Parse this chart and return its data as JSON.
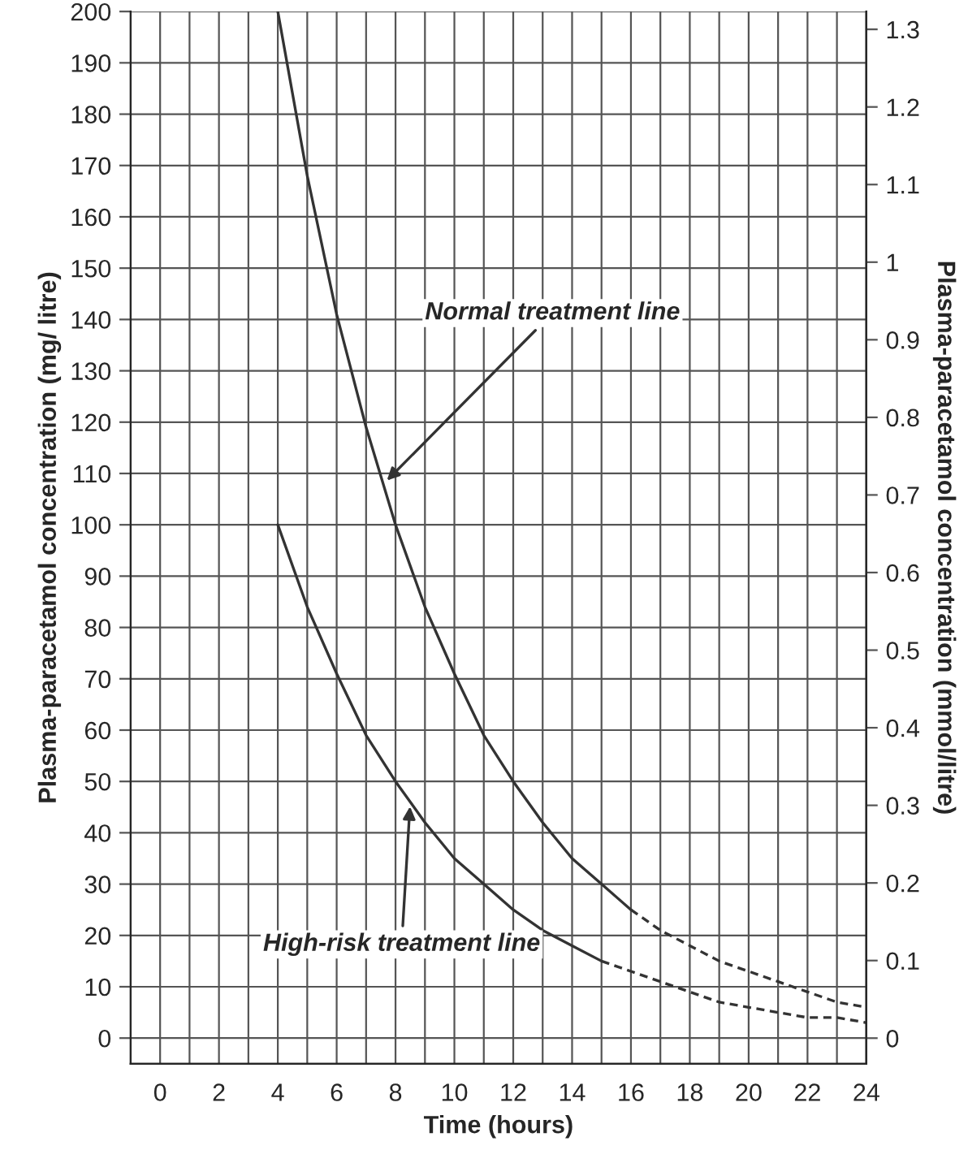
{
  "chart_data": {
    "type": "line",
    "xlabel": "Time (hours)",
    "ylabel": "Plasma-paracetamol concentration (mg/ litre)",
    "y2label": "Plasma-paracetamol concentration (mmol/litre)",
    "series": [
      {
        "color": "#333333",
        "line_style": "solid",
        "x": [
          4,
          5,
          6,
          7,
          8,
          9,
          10,
          11,
          12,
          13,
          14,
          15,
          16
        ],
        "values": [
          200,
          168,
          141,
          119,
          100,
          84,
          71,
          59,
          50,
          42,
          35,
          30,
          25
        ]
      },
      {
        "color": "#333333",
        "line_style": "dashed",
        "x": [
          16,
          17,
          18,
          19,
          20,
          21,
          22,
          23,
          24
        ],
        "values": [
          25,
          21,
          18,
          15,
          13,
          11,
          9,
          7,
          6
        ]
      },
      {
        "color": "#333333",
        "line_style": "solid",
        "x": [
          4,
          5,
          6,
          7,
          8,
          9,
          10,
          11,
          12,
          13,
          14,
          15
        ],
        "values": [
          100,
          84,
          71,
          59,
          50,
          42,
          35,
          30,
          25,
          21,
          18,
          15
        ]
      },
      {
        "color": "#333333",
        "line_style": "dashed",
        "x": [
          15,
          16,
          17,
          18,
          19,
          20,
          21,
          22,
          23,
          24
        ],
        "values": [
          15,
          13,
          11,
          9,
          7,
          6,
          5,
          4,
          4,
          3
        ]
      }
    ],
    "annotations": [
      {
        "text": "Normal treatment line",
        "x": 7.6,
        "y": 108
      },
      {
        "text": "High-risk treatment line",
        "x": 8.5,
        "y": 46
      }
    ],
    "xlim": [
      -1,
      24
    ],
    "xticks": [
      0,
      {
        "value": 1,
        "label": null
      },
      2,
      {
        "value": 3,
        "label": null
      },
      4,
      {
        "value": 5,
        "label": null
      },
      6,
      {
        "value": 7,
        "label": null
      },
      8,
      {
        "value": 9,
        "label": null
      },
      10,
      {
        "value": 11,
        "label": null
      },
      12,
      {
        "value": 13,
        "label": null
      },
      14,
      {
        "value": 15,
        "label": null
      },
      16,
      {
        "value": 17,
        "label": null
      },
      18,
      {
        "value": 19,
        "label": null
      },
      20,
      {
        "value": 21,
        "label": null
      },
      22,
      {
        "value": 23,
        "label": null
      },
      24
    ],
    "ylim": [
      -5,
      200
    ],
    "yticks": [
      0,
      10,
      20,
      30,
      40,
      50,
      60,
      70,
      80,
      90,
      100,
      110,
      120,
      130,
      140,
      150,
      160,
      170,
      180,
      190,
      200
    ],
    "y2lim": [
      -0.033,
      1.323
    ],
    "y2ticks": [
      0,
      0.1,
      0.2,
      0.3,
      0.4,
      0.5,
      0.6,
      0.7,
      0.8,
      0.9,
      1,
      1.1,
      1.2,
      1.3
    ],
    "grid": true,
    "legend": false,
    "marker": "none"
  }
}
